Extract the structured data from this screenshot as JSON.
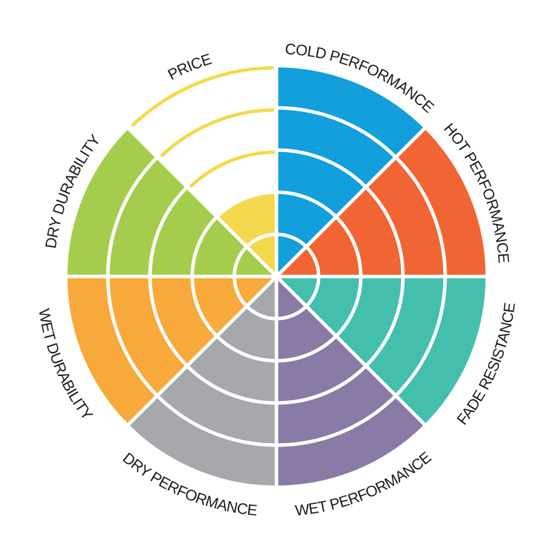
{
  "chart_data": {
    "type": "polar-area",
    "rings": 5,
    "grid": true,
    "categories": [
      "COLD PERFORMANCE",
      "HOT PERFORMANCE",
      "FADE RESISTANCE",
      "WET PERFORMANCE",
      "DRY PERFORMANCE",
      "WET DURABILITY",
      "DRY DURABILITY",
      "PRICE"
    ],
    "values": [
      5,
      5,
      5,
      5,
      5,
      5,
      5,
      2
    ],
    "colors": [
      "#129fdb",
      "#f06533",
      "#45bfad",
      "#897ba6",
      "#a7a8ab",
      "#f8a93c",
      "#a5cd4d",
      "#f4d94f"
    ]
  }
}
